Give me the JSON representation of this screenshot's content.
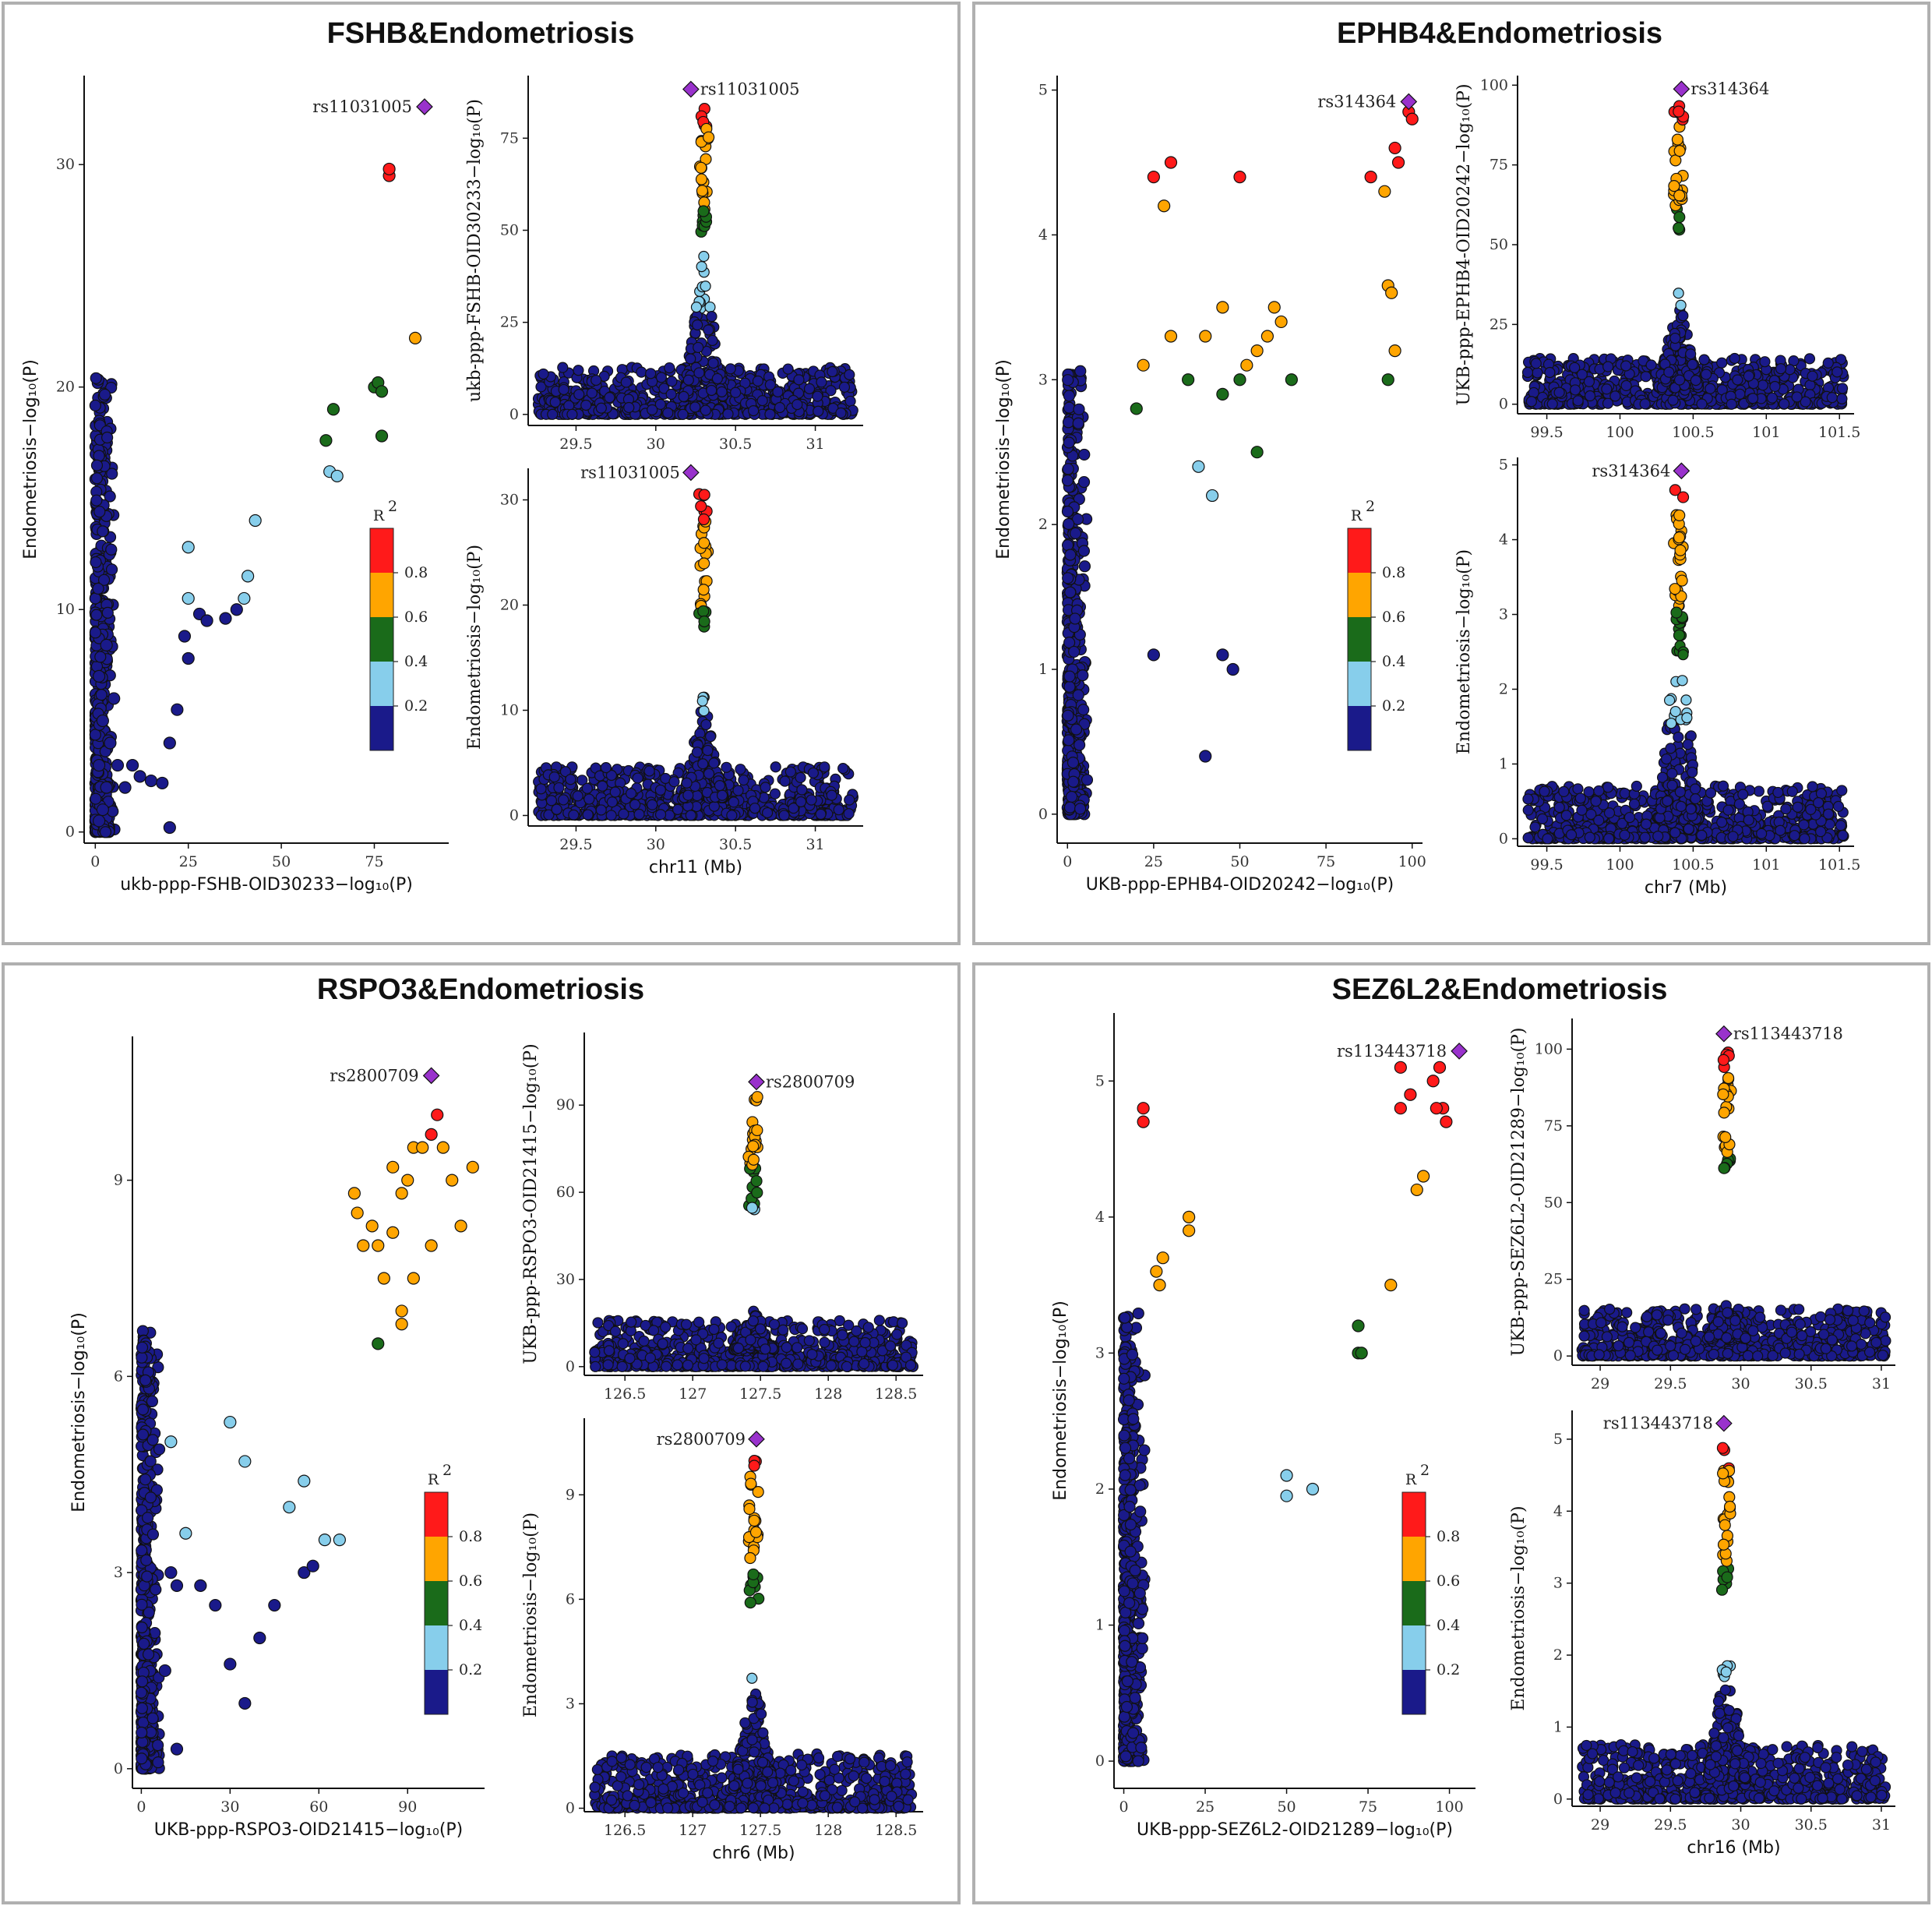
{
  "figure": {
    "colors": {
      "frame": "#b0b0b0",
      "r2_0.2": "#1a1a8a",
      "r2_0.4": "#87ceeb",
      "r2_0.6": "#1a6b1a",
      "r2_0.8": "#ffa500",
      "r2_1.0": "#ff1a1a",
      "lead": "#9932cc"
    },
    "legend": {
      "title": "R",
      "superscript": "2",
      "ticks": [
        "0.8",
        "0.6",
        "0.4",
        "0.2"
      ]
    }
  },
  "chart_data": [
    {
      "id": "fshb",
      "type": "scatter",
      "title": "FSHB&Endometriosis",
      "lead_snp": "rs11031005",
      "scatter": {
        "xlabel": "ukb-ppp-FSHB-OID30233−log₁₀(P)",
        "ylabel": "Endometriosis−log₁₀(P)",
        "xlim": [
          -3,
          95
        ],
        "ylim": [
          -0.5,
          34
        ],
        "xticks": [
          0,
          25,
          50,
          75
        ],
        "yticks": [
          0,
          10,
          20,
          30
        ],
        "lead": [
          88.5,
          32.6
        ],
        "points": [
          [
            1,
            0.5
          ],
          [
            2,
            1
          ],
          [
            3,
            2
          ],
          [
            1,
            3
          ],
          [
            4,
            4
          ],
          [
            2,
            5
          ],
          [
            5,
            6
          ],
          [
            1,
            7
          ],
          [
            3,
            8.4
          ],
          [
            6,
            3
          ],
          [
            8,
            2
          ],
          [
            10,
            3
          ],
          [
            12,
            2.5
          ],
          [
            15,
            2.3
          ],
          [
            18,
            2.2
          ],
          [
            20,
            4
          ],
          [
            22,
            5.5
          ],
          [
            25,
            7.8
          ],
          [
            24,
            8.8
          ],
          [
            25,
            12.8
          ],
          [
            25,
            10.5
          ],
          [
            28,
            9.8
          ],
          [
            30,
            9.5
          ],
          [
            35,
            9.6
          ],
          [
            38,
            10
          ],
          [
            40,
            10.5
          ],
          [
            41,
            11.5
          ],
          [
            43,
            14
          ],
          [
            20,
            0.2
          ],
          [
            63,
            16.2
          ],
          [
            65,
            16
          ],
          [
            62,
            17.6
          ],
          [
            64,
            19
          ],
          [
            75,
            20
          ],
          [
            76,
            20.2
          ],
          [
            77,
            19.8
          ],
          [
            77,
            17.8
          ],
          [
            79,
            29.5
          ],
          [
            79,
            29.8
          ],
          [
            86,
            22.2
          ]
        ]
      },
      "top": {
        "xlabel": "",
        "ylabel": "ukb-ppp-FSHB-OID30233−log₁₀(P)",
        "xlim": [
          29.2,
          31.3
        ],
        "ylim": [
          -3,
          92
        ],
        "xticks": [
          29.5,
          30.0,
          30.5,
          31.0
        ],
        "yticks": [
          0,
          25,
          50,
          75
        ],
        "lead": [
          30.22,
          88.3
        ],
        "peak_center": 30.3,
        "peak_height": 40
      },
      "bottom": {
        "xlabel": "chr11 (Mb)",
        "ylabel": "Endometriosis−log₁₀(P)",
        "xlim": [
          29.2,
          31.3
        ],
        "ylim": [
          -1,
          33
        ],
        "xticks": [
          29.5,
          30.0,
          30.5,
          31.0
        ],
        "yticks": [
          0,
          10,
          20,
          30
        ],
        "lead": [
          30.22,
          32.6
        ],
        "peak_center": 30.3,
        "peak_height": 10
      }
    },
    {
      "id": "ephb4",
      "type": "scatter",
      "title": "EPHB4&Endometriosis",
      "lead_snp": "rs314364",
      "scatter": {
        "xlabel": "UKB-ppp-EPHB4-OID20242−log₁₀(P)",
        "ylabel": "Endometriosis−log₁₀(P)",
        "xlim": [
          -3,
          103
        ],
        "ylim": [
          -0.2,
          5.1
        ],
        "xticks": [
          0,
          25,
          50,
          75,
          100
        ],
        "yticks": [
          0,
          1,
          2,
          3,
          4,
          5
        ],
        "lead": [
          99,
          4.92
        ],
        "points": [
          [
            25,
            4.4
          ],
          [
            30,
            4.5
          ],
          [
            45,
            3.5
          ],
          [
            40,
            3.3
          ],
          [
            35,
            3.0
          ],
          [
            20,
            2.8
          ],
          [
            22,
            3.1
          ],
          [
            38,
            2.4
          ],
          [
            42,
            2.2
          ],
          [
            45,
            1.1
          ],
          [
            48,
            1.0
          ],
          [
            40,
            0.4
          ],
          [
            25,
            1.1
          ],
          [
            28,
            4.2
          ],
          [
            50,
            4.4
          ],
          [
            30,
            3.3
          ],
          [
            50,
            3.0
          ],
          [
            52,
            3.1
          ],
          [
            55,
            3.2
          ],
          [
            45,
            2.9
          ],
          [
            58,
            3.3
          ],
          [
            60,
            3.5
          ],
          [
            62,
            3.4
          ],
          [
            65,
            3.0
          ],
          [
            55,
            2.5
          ],
          [
            88,
            4.4
          ],
          [
            92,
            4.3
          ],
          [
            95,
            4.6
          ],
          [
            96,
            4.5
          ],
          [
            99,
            4.85
          ],
          [
            100,
            4.8
          ],
          [
            93,
            3.65
          ],
          [
            94,
            3.6
          ],
          [
            95,
            3.2
          ],
          [
            93,
            3.0
          ]
        ]
      },
      "top": {
        "xlabel": "",
        "ylabel": "UKB-ppp-EPHB4-OID20242−log₁₀(P)",
        "xlim": [
          99.3,
          101.6
        ],
        "ylim": [
          -3,
          103
        ],
        "xticks": [
          99.5,
          100.0,
          100.5,
          101.0,
          101.5
        ],
        "yticks": [
          0,
          25,
          50,
          75,
          100
        ],
        "lead": [
          100.42,
          98.8
        ],
        "peak_center": 100.4,
        "peak_height": 30
      },
      "bottom": {
        "xlabel": "chr7 (Mb)",
        "ylabel": "Endometriosis−log₁₀(P)",
        "xlim": [
          99.3,
          101.6
        ],
        "ylim": [
          -0.1,
          5.1
        ],
        "xticks": [
          99.5,
          100.0,
          100.5,
          101.0,
          101.5
        ],
        "yticks": [
          0,
          1,
          2,
          3,
          4,
          5
        ],
        "lead": [
          100.42,
          4.92
        ],
        "peak_center": 100.4,
        "peak_height": 3.0
      }
    },
    {
      "id": "rspo3",
      "type": "scatter",
      "title": "RSPO3&Endometriosis",
      "lead_snp": "rs2800709",
      "scatter": {
        "xlabel": "UKB-ppp-RSPO3-OID21415−log₁₀(P)",
        "ylabel": "Endometriosis−log₁₀(P)",
        "xlim": [
          -3,
          116
        ],
        "ylim": [
          -0.3,
          11.2
        ],
        "xticks": [
          0,
          30,
          60,
          90
        ],
        "yticks": [
          0,
          3,
          6,
          9
        ],
        "lead": [
          98,
          10.6
        ],
        "points": [
          [
            10,
            3
          ],
          [
            12,
            2.8
          ],
          [
            20,
            2.8
          ],
          [
            25,
            2.5
          ],
          [
            30,
            1.6
          ],
          [
            35,
            1.0
          ],
          [
            40,
            2.0
          ],
          [
            50,
            4.0
          ],
          [
            55,
            3.0
          ],
          [
            58,
            3.1
          ],
          [
            8,
            1.5
          ],
          [
            12,
            0.3
          ],
          [
            15,
            3.6
          ],
          [
            10,
            5.0
          ],
          [
            30,
            5.3
          ],
          [
            35,
            4.7
          ],
          [
            55,
            4.4
          ],
          [
            62,
            3.5
          ],
          [
            67,
            3.5
          ],
          [
            45,
            2.5
          ],
          [
            72,
            8.8
          ],
          [
            73,
            8.5
          ],
          [
            78,
            8.3
          ],
          [
            80,
            8.0
          ],
          [
            82,
            7.5
          ],
          [
            85,
            8.2
          ],
          [
            88,
            8.8
          ],
          [
            90,
            9.0
          ],
          [
            92,
            9.5
          ],
          [
            85,
            9.2
          ],
          [
            80,
            6.5
          ],
          [
            88,
            6.8
          ],
          [
            92,
            7.5
          ],
          [
            95,
            9.5
          ],
          [
            98,
            9.7
          ],
          [
            100,
            10.0
          ],
          [
            102,
            9.5
          ],
          [
            105,
            9.0
          ],
          [
            108,
            8.3
          ],
          [
            112,
            9.2
          ],
          [
            75,
            8.0
          ],
          [
            88,
            7.0
          ],
          [
            98,
            8.0
          ]
        ]
      },
      "top": {
        "xlabel": "",
        "ylabel": "UKB-ppp-RSPO3-OID21415−log₁₀(P)",
        "xlim": [
          126.2,
          128.7
        ],
        "ylim": [
          -3,
          115
        ],
        "xticks": [
          126.5,
          127.0,
          127.5,
          128.0,
          128.5
        ],
        "yticks": [
          0,
          30,
          60,
          90
        ],
        "lead": [
          127.47,
          98
        ],
        "peak_center": 127.45,
        "peak_height": 15
      },
      "bottom": {
        "xlabel": "chr6 (Mb)",
        "ylabel": "Endometriosis−log₁₀(P)",
        "xlim": [
          126.2,
          128.7
        ],
        "ylim": [
          -0.1,
          11.2
        ],
        "xticks": [
          126.5,
          127.0,
          127.5,
          128.0,
          128.5
        ],
        "yticks": [
          0,
          3,
          6,
          9
        ],
        "lead": [
          127.47,
          10.6
        ],
        "peak_center": 127.45,
        "peak_height": 3.5
      }
    },
    {
      "id": "sez6l2",
      "type": "scatter",
      "title": "SEZ6L2&Endometriosis",
      "lead_snp": "rs113443718",
      "scatter": {
        "xlabel": "UKB-ppp-SEZ6L2-OID21289−log₁₀(P)",
        "ylabel": "Endometriosis−log₁₀(P)",
        "xlim": [
          -3,
          108
        ],
        "ylim": [
          -0.2,
          5.5
        ],
        "xticks": [
          0,
          25,
          50,
          75,
          100
        ],
        "yticks": [
          0,
          1,
          2,
          3,
          4,
          5
        ],
        "lead": [
          103,
          5.22
        ],
        "points": [
          [
            10,
            3.6
          ],
          [
            12,
            3.7
          ],
          [
            11,
            3.5
          ],
          [
            50,
            2.1
          ],
          [
            50,
            1.95
          ],
          [
            58,
            2.0
          ],
          [
            72,
            3.0
          ],
          [
            73,
            3.0
          ],
          [
            72,
            3.2
          ],
          [
            85,
            5.1
          ],
          [
            90,
            4.2
          ],
          [
            95,
            5.0
          ],
          [
            97,
            5.1
          ],
          [
            99,
            4.7
          ],
          [
            98,
            4.8
          ],
          [
            96,
            4.8
          ],
          [
            92,
            4.3
          ],
          [
            82,
            3.5
          ],
          [
            88,
            4.9
          ],
          [
            85,
            4.8
          ],
          [
            6,
            4.8
          ],
          [
            6,
            4.7
          ],
          [
            20,
            4.0
          ],
          [
            20,
            3.9
          ]
        ]
      },
      "top": {
        "xlabel": "",
        "ylabel": "UKB-ppp-SEZ6L2-OID21289−log₁₀(P)",
        "xlim": [
          28.8,
          31.1
        ],
        "ylim": [
          -3,
          110
        ],
        "xticks": [
          29.0,
          29.5,
          30.0,
          30.5,
          31.0
        ],
        "yticks": [
          0,
          25,
          50,
          75,
          100
        ],
        "lead": [
          29.88,
          105
        ],
        "peak_center": 29.9,
        "peak_height": 12
      },
      "bottom": {
        "xlabel": "chr16 (Mb)",
        "ylabel": "Endometriosis−log₁₀(P)",
        "xlim": [
          28.8,
          31.1
        ],
        "ylim": [
          -0.1,
          5.4
        ],
        "xticks": [
          29.0,
          29.5,
          30.0,
          30.5,
          31.0
        ],
        "yticks": [
          0,
          1,
          2,
          3,
          4,
          5
        ],
        "lead": [
          29.88,
          5.22
        ],
        "peak_center": 29.9,
        "peak_height": 2.0
      }
    }
  ]
}
